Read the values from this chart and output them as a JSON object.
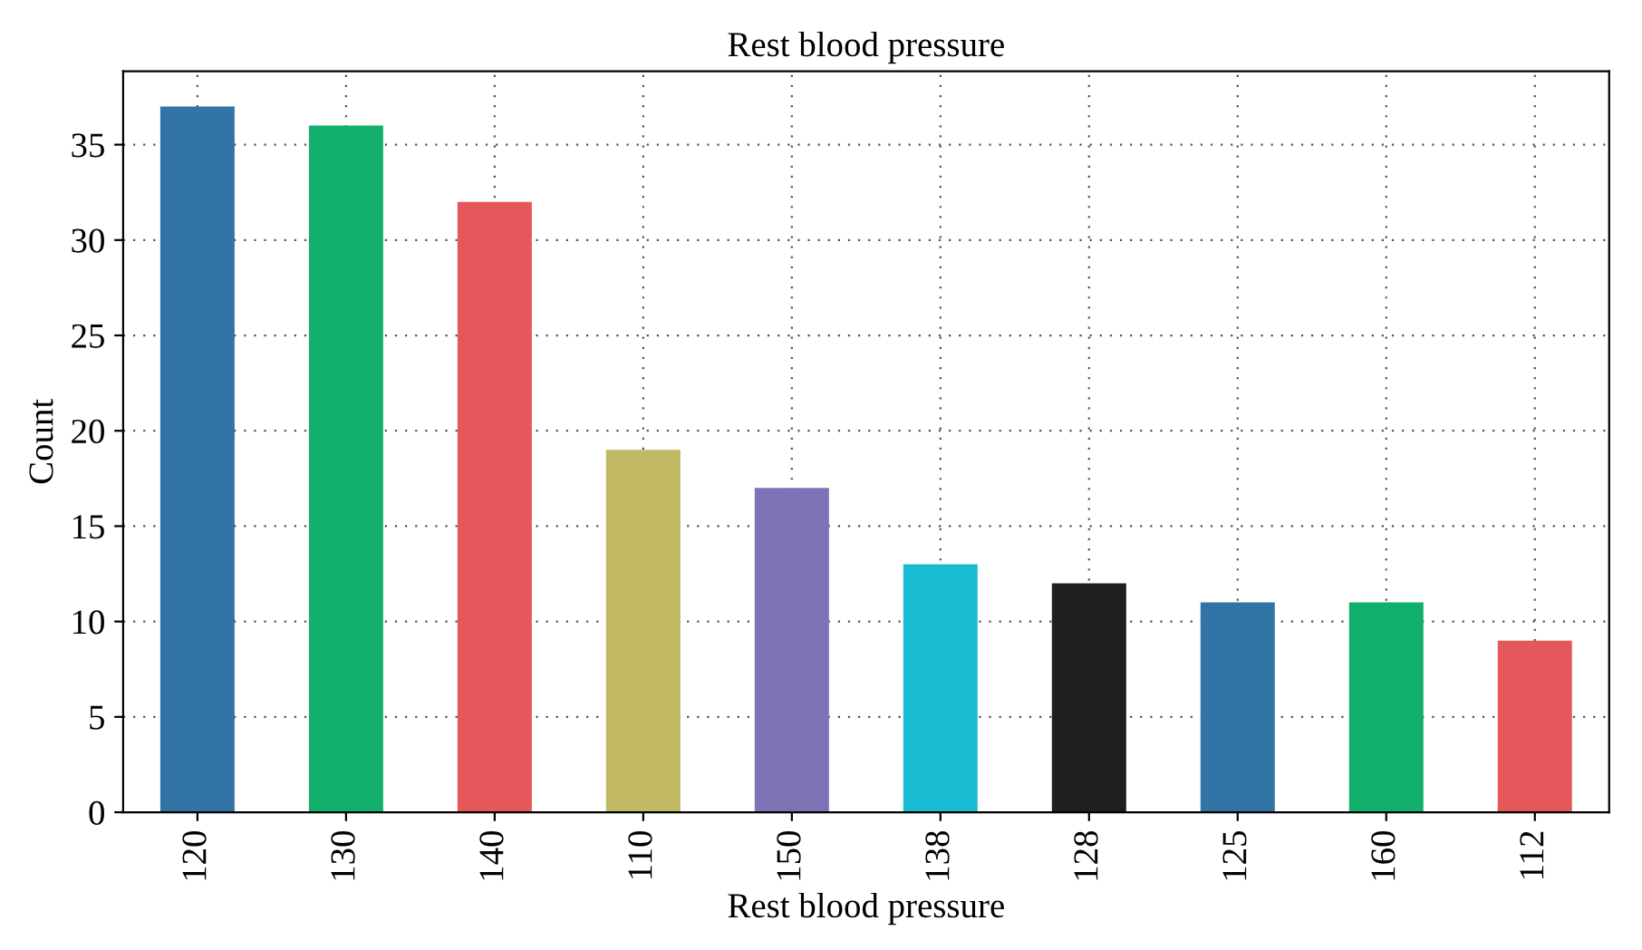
{
  "chart_data": {
    "type": "bar",
    "title": "Rest blood pressure",
    "xlabel": "Rest blood pressure",
    "ylabel": "Count",
    "categories": [
      "120",
      "130",
      "140",
      "110",
      "150",
      "138",
      "128",
      "125",
      "160",
      "112"
    ],
    "values": [
      37,
      36,
      32,
      19,
      17,
      13,
      12,
      11,
      11,
      9
    ],
    "colors": [
      "#3274a5",
      "#12b06a",
      "#e4575a",
      "#c0b862",
      "#7e74b5",
      "#18bcd2",
      "#202020",
      "#3274a5",
      "#12b06a",
      "#e4575a"
    ],
    "ylim": [
      0,
      38.85
    ],
    "yticks": [
      0,
      5,
      10,
      15,
      20,
      25,
      30,
      35
    ],
    "grid": true
  }
}
